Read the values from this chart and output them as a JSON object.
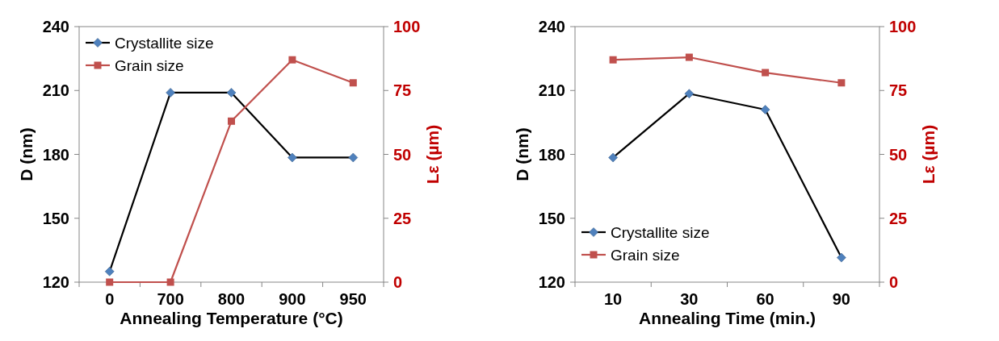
{
  "chart_data": [
    {
      "type": "line",
      "xlabel": "Annealing Temperature (°C)",
      "ylabel": "D (nm)",
      "y2label": "Lε (µm)",
      "categories": [
        "0",
        "700",
        "800",
        "900",
        "950"
      ],
      "series": [
        {
          "name": "Crystallite size",
          "color": "#4f81bd",
          "marker": "diamond",
          "values": [
            125,
            209,
            209,
            178.5,
            178.5
          ]
        },
        {
          "name": "Grain size",
          "color": "#c0504d",
          "marker": "square",
          "axis": "y2",
          "values": [
            0,
            0,
            63,
            87,
            78
          ]
        }
      ],
      "ylim": [
        120,
        240
      ],
      "yticks": [
        120,
        150,
        180,
        210,
        240
      ],
      "y2lim": [
        0,
        100
      ],
      "y2ticks": [
        0,
        25,
        50,
        75,
        100
      ],
      "legend": "top left"
    },
    {
      "type": "line",
      "xlabel": "Annealing Time (min.)",
      "ylabel": "D (nm)",
      "y2label": "Lε (µm)",
      "categories": [
        "10",
        "30",
        "60",
        "90"
      ],
      "series": [
        {
          "name": "Crystallite size",
          "color": "#4f81bd",
          "marker": "diamond",
          "values": [
            178.5,
            208.5,
            201,
            131.5
          ]
        },
        {
          "name": "Grain size",
          "color": "#c0504d",
          "marker": "square",
          "axis": "y2",
          "values": [
            87,
            88,
            82,
            78
          ]
        }
      ],
      "ylim": [
        120,
        240
      ],
      "yticks": [
        120,
        150,
        180,
        210,
        240
      ],
      "y2lim": [
        0,
        100
      ],
      "y2ticks": [
        0,
        25,
        50,
        75,
        100
      ],
      "legend": "bottom left"
    }
  ]
}
